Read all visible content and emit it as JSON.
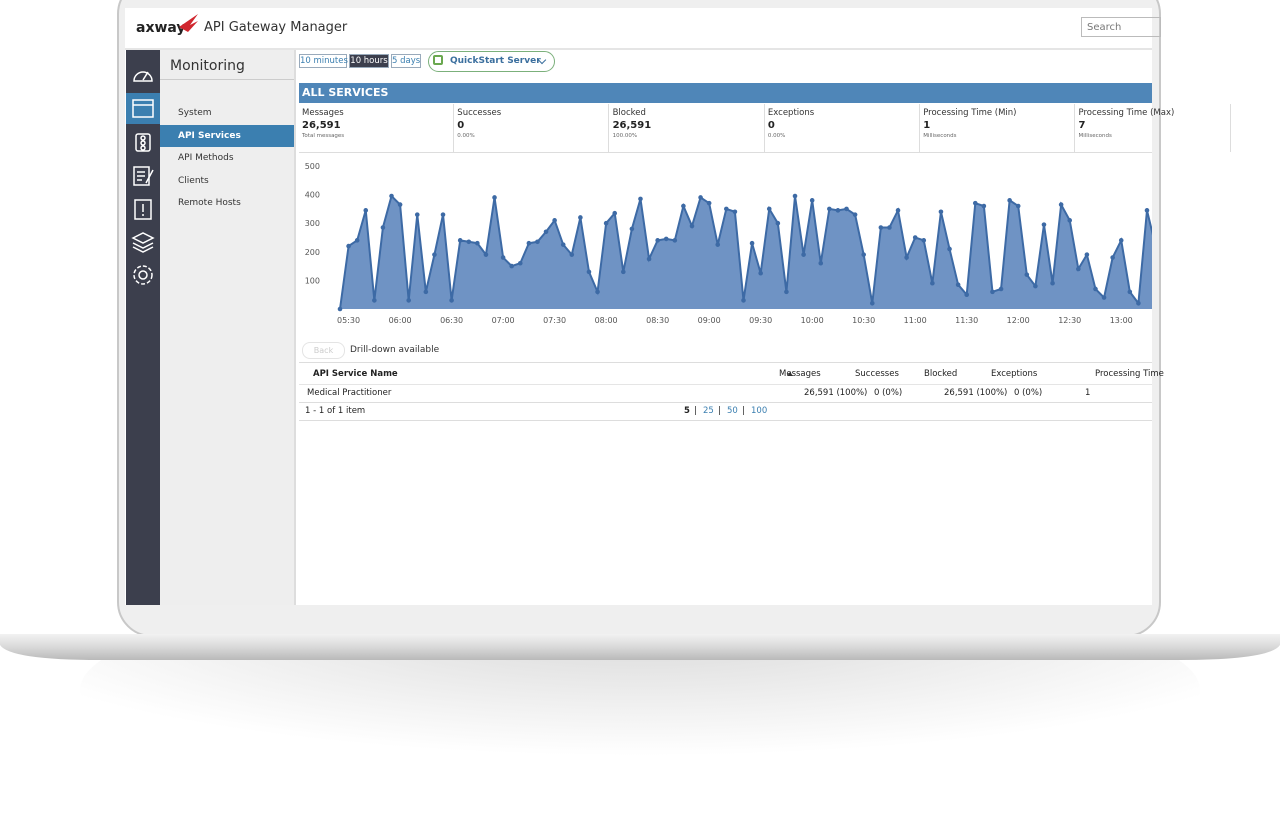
{
  "header": {
    "logo": "axway",
    "app_title": "API Gateway Manager",
    "search_placeholder": "Search"
  },
  "nav": {
    "title": "Monitoring",
    "items": [
      "System",
      "API Services",
      "API Methods",
      "Clients",
      "Remote Hosts"
    ],
    "active": 1
  },
  "toolbar": {
    "ranges": [
      "10 minutes",
      "10 hours",
      "5 days"
    ],
    "active": 1,
    "server": "QuickStart Server"
  },
  "section_title": "ALL SERVICES",
  "stats": [
    {
      "label": "Messages",
      "value": "26,591",
      "sub": "Total messages"
    },
    {
      "label": "Successes",
      "value": "0",
      "sub": "0.00%"
    },
    {
      "label": "Blocked",
      "value": "26,591",
      "sub": "100.00%"
    },
    {
      "label": "Exceptions",
      "value": "0",
      "sub": "0.00%"
    },
    {
      "label": "Processing Time (Min)",
      "value": "1",
      "sub": "Milliseconds"
    },
    {
      "label": "Processing Time (Max)",
      "value": "7",
      "sub": "Milliseconds"
    }
  ],
  "chart": {
    "type": "area",
    "color": "#3d6aa5",
    "x": [
      "05:25",
      "05:30",
      "05:35",
      "05:40",
      "05:45",
      "05:50",
      "05:55",
      "06:00",
      "06:05",
      "06:10",
      "06:15",
      "06:20",
      "06:25",
      "06:30",
      "06:35",
      "06:40",
      "06:45",
      "06:50",
      "06:55",
      "07:00",
      "07:05",
      "07:10",
      "07:15",
      "07:20",
      "07:25",
      "07:30",
      "07:35",
      "07:40",
      "07:45",
      "07:50",
      "07:55",
      "08:00",
      "08:05",
      "08:10",
      "08:15",
      "08:20",
      "08:25",
      "08:30",
      "08:35",
      "08:40",
      "08:45",
      "08:50",
      "08:55",
      "09:00",
      "09:05",
      "09:10",
      "09:15",
      "09:20",
      "09:25",
      "09:30",
      "09:35",
      "09:40",
      "09:45",
      "09:50",
      "09:55",
      "10:00",
      "10:05",
      "10:10",
      "10:15",
      "10:20",
      "10:25",
      "10:30",
      "10:35",
      "10:40",
      "10:45",
      "10:50",
      "10:55",
      "11:00",
      "11:05",
      "11:10",
      "11:15",
      "11:20",
      "11:25",
      "11:30",
      "11:35",
      "11:40",
      "11:45",
      "11:50",
      "11:55",
      "12:00",
      "12:05",
      "12:10",
      "12:15",
      "12:20",
      "12:25",
      "12:30",
      "12:35",
      "12:40",
      "12:45",
      "12:50",
      "12:55",
      "13:00",
      "13:05",
      "13:10",
      "13:15",
      "13:20"
    ],
    "values": [
      0,
      220,
      240,
      345,
      30,
      285,
      395,
      365,
      30,
      330,
      60,
      190,
      330,
      30,
      240,
      235,
      230,
      190,
      390,
      180,
      150,
      160,
      230,
      235,
      270,
      310,
      225,
      190,
      320,
      130,
      60,
      300,
      335,
      130,
      280,
      385,
      175,
      240,
      245,
      240,
      360,
      290,
      390,
      370,
      225,
      350,
      340,
      30,
      230,
      125,
      350,
      300,
      60,
      395,
      190,
      380,
      160,
      350,
      345,
      350,
      330,
      190,
      20,
      285,
      285,
      345,
      180,
      250,
      240,
      90,
      340,
      210,
      85,
      50,
      370,
      360,
      60,
      70,
      380,
      360,
      120,
      80,
      295,
      90,
      365,
      310,
      140,
      190,
      70,
      40,
      180,
      240,
      60,
      20,
      345,
      220
    ],
    "xticks": [
      "05:30",
      "06:00",
      "06:30",
      "07:00",
      "07:30",
      "08:00",
      "08:30",
      "09:00",
      "09:30",
      "10:00",
      "10:30",
      "11:00",
      "11:30",
      "12:00",
      "12:30",
      "13:00"
    ],
    "ylim": [
      0,
      500
    ],
    "yticks": [
      100,
      200,
      300,
      400,
      500
    ]
  },
  "drill": {
    "back": "Back",
    "text": "Drill-down available"
  },
  "table": {
    "columns": [
      "API Service Name",
      "Messages",
      "Successes",
      "Blocked",
      "Exceptions",
      "Processing Time"
    ],
    "rows": [
      [
        "Medical Practitioner",
        "26,591 (100%)",
        "0 (0%)",
        "26,591 (100%)",
        "0 (0%)",
        "1"
      ]
    ],
    "summary": "1 - 1 of 1 item",
    "page_sizes": [
      "5",
      "25",
      "50",
      "100"
    ],
    "separator": "|"
  }
}
